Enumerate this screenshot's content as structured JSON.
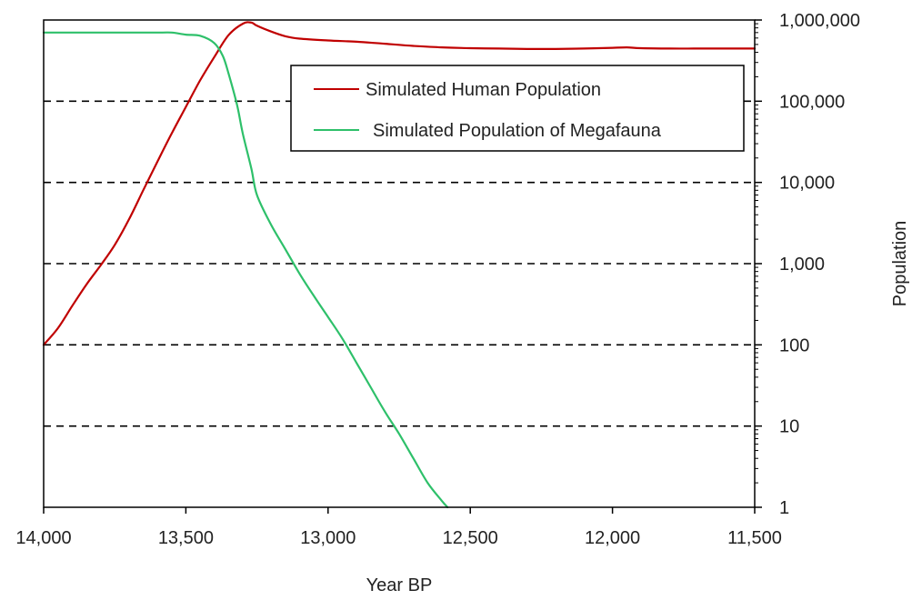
{
  "chart_data": {
    "type": "line",
    "title": "",
    "xlabel": "Year BP",
    "ylabel": "Population",
    "x_reversed": true,
    "xlim": [
      14000,
      11500
    ],
    "ylim": [
      1,
      1000000
    ],
    "y_scale": "log",
    "x_ticks": [
      14000,
      13500,
      13000,
      12500,
      12000,
      11500
    ],
    "x_tick_labels": [
      "14,000",
      "13,500",
      "13,000",
      "12,500",
      "12,000",
      "11,500"
    ],
    "y_ticks": [
      1,
      10,
      100,
      1000,
      10000,
      100000,
      1000000
    ],
    "y_tick_labels": [
      "1",
      "10",
      "100",
      "1,000",
      "10,000",
      "100,000",
      "1,000,000"
    ],
    "grid": "horizontal dashed",
    "legend_position": "top-right",
    "series": [
      {
        "name": "Simulated Human Population",
        "color": "#c00000",
        "points": [
          [
            14000,
            100
          ],
          [
            13950,
            160
          ],
          [
            13900,
            300
          ],
          [
            13850,
            550
          ],
          [
            13800,
            950
          ],
          [
            13750,
            1700
          ],
          [
            13700,
            3500
          ],
          [
            13650,
            8000
          ],
          [
            13600,
            18000
          ],
          [
            13550,
            40000
          ],
          [
            13500,
            85000
          ],
          [
            13450,
            180000
          ],
          [
            13400,
            350000
          ],
          [
            13350,
            650000
          ],
          [
            13300,
            900000
          ],
          [
            13270,
            930000
          ],
          [
            13250,
            850000
          ],
          [
            13200,
            720000
          ],
          [
            13150,
            630000
          ],
          [
            13100,
            590000
          ],
          [
            13000,
            560000
          ],
          [
            12900,
            540000
          ],
          [
            12800,
            510000
          ],
          [
            12700,
            480000
          ],
          [
            12600,
            460000
          ],
          [
            12500,
            450000
          ],
          [
            12400,
            445000
          ],
          [
            12300,
            440000
          ],
          [
            12200,
            440000
          ],
          [
            12100,
            445000
          ],
          [
            12000,
            455000
          ],
          [
            11950,
            460000
          ],
          [
            11900,
            450000
          ],
          [
            11800,
            445000
          ],
          [
            11700,
            445000
          ],
          [
            11600,
            445000
          ],
          [
            11500,
            445000
          ]
        ]
      },
      {
        "name": "Simulated Population of Megafauna",
        "color": "#2ec06a",
        "points": [
          [
            14000,
            700000
          ],
          [
            13800,
            700000
          ],
          [
            13600,
            700000
          ],
          [
            13550,
            700000
          ],
          [
            13500,
            660000
          ],
          [
            13450,
            640000
          ],
          [
            13400,
            520000
          ],
          [
            13370,
            360000
          ],
          [
            13350,
            220000
          ],
          [
            13320,
            90000
          ],
          [
            13300,
            40000
          ],
          [
            13270,
            15000
          ],
          [
            13250,
            7000
          ],
          [
            13200,
            3000
          ],
          [
            13150,
            1500
          ],
          [
            13100,
            750
          ],
          [
            13050,
            400
          ],
          [
            13000,
            220
          ],
          [
            12950,
            120
          ],
          [
            12900,
            60
          ],
          [
            12850,
            30
          ],
          [
            12800,
            15
          ],
          [
            12750,
            8
          ],
          [
            12700,
            4
          ],
          [
            12650,
            2
          ],
          [
            12600,
            1.2
          ],
          [
            12580,
            1
          ]
        ]
      }
    ]
  }
}
